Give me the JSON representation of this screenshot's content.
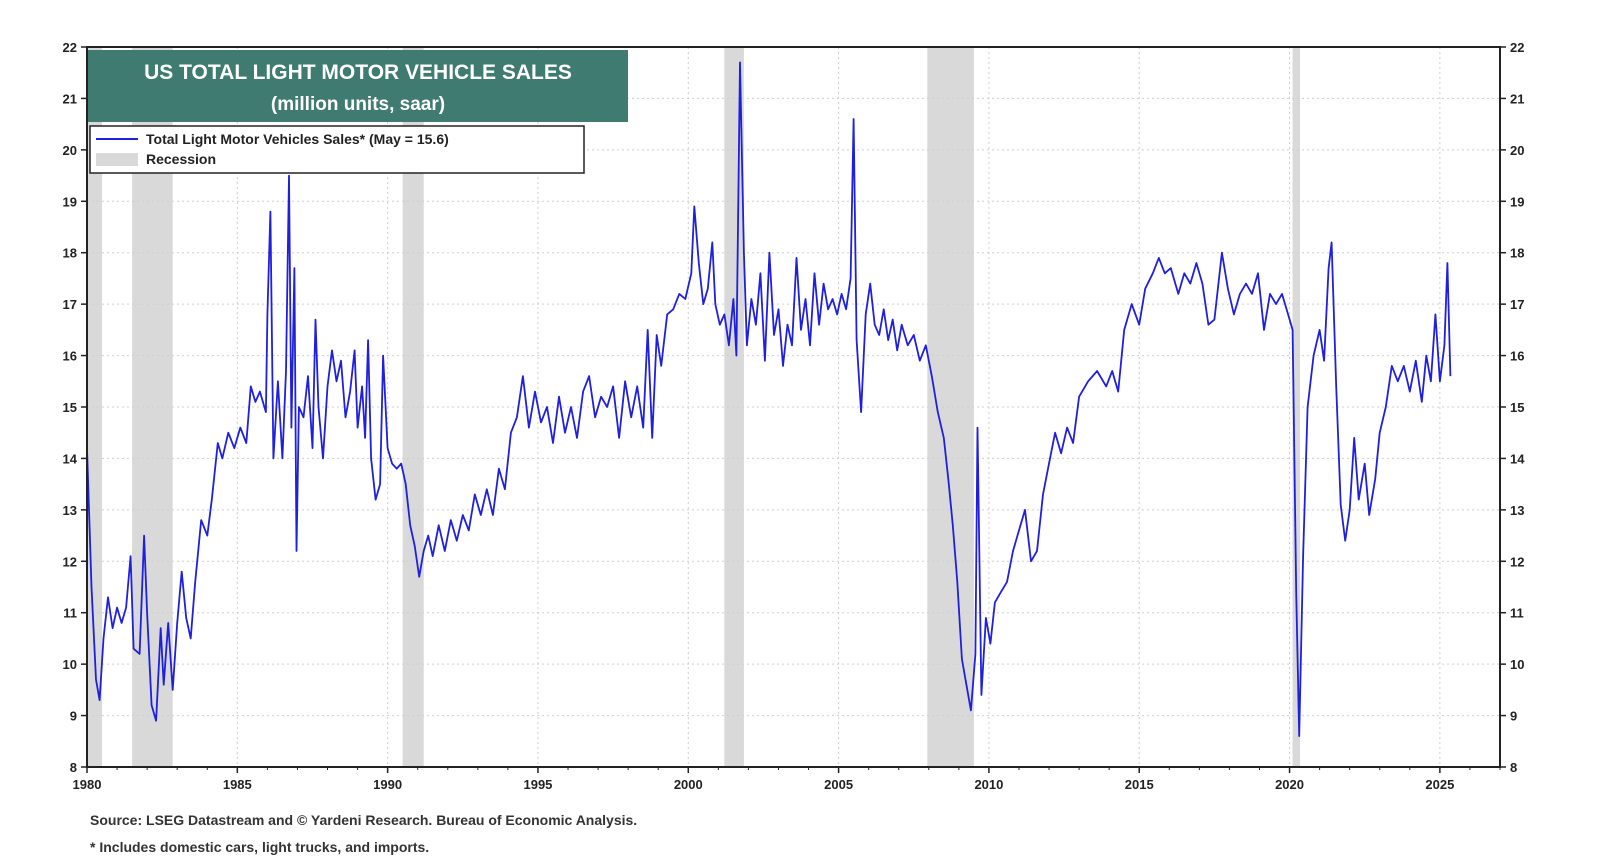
{
  "chart_data": {
    "type": "line",
    "title": "US TOTAL LIGHT MOTOR VEHICLE SALES",
    "subtitle": "(million units, saar)",
    "xlabel": "",
    "ylabel": "",
    "xlim": [
      1980,
      2027
    ],
    "ylim": [
      8,
      22
    ],
    "x_ticks": [
      "1980",
      "1985",
      "1990",
      "1995",
      "2000",
      "2005",
      "2010",
      "2015",
      "2020",
      "2025"
    ],
    "y_ticks": [
      "8",
      "9",
      "10",
      "11",
      "12",
      "13",
      "14",
      "15",
      "16",
      "17",
      "18",
      "19",
      "20",
      "21",
      "22"
    ],
    "grid": true,
    "legend_position": "top-left",
    "legend": [
      {
        "label": "Total Light Motor Vehicles Sales* (May = 15.6)",
        "kind": "line",
        "color": "#1f1fe0"
      },
      {
        "label": "Recession",
        "kind": "band",
        "color": "#d9d9d9"
      }
    ],
    "recessions": [
      [
        1980.0,
        1980.5
      ],
      [
        1981.5,
        1982.85
      ],
      [
        1990.5,
        1991.2
      ],
      [
        2001.2,
        2001.85
      ],
      [
        2007.95,
        2009.5
      ],
      [
        2020.1,
        2020.35
      ]
    ],
    "series": [
      {
        "name": "Total Light Motor Vehicles Sales* (May = 15.6)",
        "color": "#1f1fe0",
        "points": [
          [
            1980.0,
            14.2
          ],
          [
            1980.15,
            11.5
          ],
          [
            1980.3,
            9.7
          ],
          [
            1980.42,
            9.3
          ],
          [
            1980.55,
            10.5
          ],
          [
            1980.7,
            11.3
          ],
          [
            1980.85,
            10.7
          ],
          [
            1981.0,
            11.1
          ],
          [
            1981.15,
            10.8
          ],
          [
            1981.3,
            11.1
          ],
          [
            1981.45,
            12.1
          ],
          [
            1981.55,
            10.3
          ],
          [
            1981.75,
            10.2
          ],
          [
            1981.9,
            12.5
          ],
          [
            1982.0,
            11.0
          ],
          [
            1982.15,
            9.2
          ],
          [
            1982.3,
            8.9
          ],
          [
            1982.45,
            10.7
          ],
          [
            1982.55,
            9.6
          ],
          [
            1982.7,
            10.8
          ],
          [
            1982.85,
            9.5
          ],
          [
            1983.0,
            10.8
          ],
          [
            1983.15,
            11.8
          ],
          [
            1983.3,
            10.9
          ],
          [
            1983.45,
            10.5
          ],
          [
            1983.6,
            11.6
          ],
          [
            1983.8,
            12.8
          ],
          [
            1984.0,
            12.5
          ],
          [
            1984.15,
            13.2
          ],
          [
            1984.35,
            14.3
          ],
          [
            1984.5,
            14.0
          ],
          [
            1984.7,
            14.5
          ],
          [
            1984.9,
            14.2
          ],
          [
            1985.1,
            14.6
          ],
          [
            1985.3,
            14.3
          ],
          [
            1985.45,
            15.4
          ],
          [
            1985.6,
            15.1
          ],
          [
            1985.75,
            15.3
          ],
          [
            1985.95,
            14.9
          ],
          [
            1986.0,
            16.8
          ],
          [
            1986.1,
            18.8
          ],
          [
            1986.2,
            14.0
          ],
          [
            1986.35,
            15.5
          ],
          [
            1986.5,
            14.0
          ],
          [
            1986.62,
            15.7
          ],
          [
            1986.72,
            19.5
          ],
          [
            1986.8,
            14.6
          ],
          [
            1986.9,
            17.7
          ],
          [
            1986.97,
            12.2
          ],
          [
            1987.05,
            15.0
          ],
          [
            1987.2,
            14.8
          ],
          [
            1987.35,
            15.6
          ],
          [
            1987.5,
            14.2
          ],
          [
            1987.6,
            16.7
          ],
          [
            1987.7,
            15.0
          ],
          [
            1987.85,
            14.0
          ],
          [
            1988.0,
            15.4
          ],
          [
            1988.15,
            16.1
          ],
          [
            1988.3,
            15.5
          ],
          [
            1988.45,
            15.9
          ],
          [
            1988.6,
            14.8
          ],
          [
            1988.75,
            15.3
          ],
          [
            1988.9,
            16.1
          ],
          [
            1989.0,
            14.6
          ],
          [
            1989.15,
            15.4
          ],
          [
            1989.25,
            14.4
          ],
          [
            1989.35,
            16.3
          ],
          [
            1989.45,
            14.0
          ],
          [
            1989.6,
            13.2
          ],
          [
            1989.75,
            13.5
          ],
          [
            1989.85,
            16.0
          ],
          [
            1990.0,
            14.2
          ],
          [
            1990.15,
            13.9
          ],
          [
            1990.3,
            13.8
          ],
          [
            1990.45,
            13.9
          ],
          [
            1990.6,
            13.5
          ],
          [
            1990.75,
            12.7
          ],
          [
            1990.9,
            12.3
          ],
          [
            1991.05,
            11.7
          ],
          [
            1991.2,
            12.2
          ],
          [
            1991.35,
            12.5
          ],
          [
            1991.5,
            12.1
          ],
          [
            1991.7,
            12.7
          ],
          [
            1991.9,
            12.2
          ],
          [
            1992.1,
            12.8
          ],
          [
            1992.3,
            12.4
          ],
          [
            1992.5,
            12.9
          ],
          [
            1992.7,
            12.6
          ],
          [
            1992.9,
            13.3
          ],
          [
            1993.1,
            12.9
          ],
          [
            1993.3,
            13.4
          ],
          [
            1993.5,
            12.9
          ],
          [
            1993.7,
            13.8
          ],
          [
            1993.9,
            13.4
          ],
          [
            1994.1,
            14.5
          ],
          [
            1994.3,
            14.8
          ],
          [
            1994.5,
            15.6
          ],
          [
            1994.7,
            14.6
          ],
          [
            1994.9,
            15.3
          ],
          [
            1995.1,
            14.7
          ],
          [
            1995.3,
            15.0
          ],
          [
            1995.5,
            14.3
          ],
          [
            1995.7,
            15.2
          ],
          [
            1995.9,
            14.5
          ],
          [
            1996.1,
            15.0
          ],
          [
            1996.3,
            14.4
          ],
          [
            1996.5,
            15.3
          ],
          [
            1996.7,
            15.6
          ],
          [
            1996.9,
            14.8
          ],
          [
            1997.1,
            15.2
          ],
          [
            1997.3,
            15.0
          ],
          [
            1997.5,
            15.4
          ],
          [
            1997.7,
            14.4
          ],
          [
            1997.9,
            15.5
          ],
          [
            1998.1,
            14.8
          ],
          [
            1998.3,
            15.4
          ],
          [
            1998.5,
            14.6
          ],
          [
            1998.65,
            16.5
          ],
          [
            1998.8,
            14.4
          ],
          [
            1998.95,
            16.4
          ],
          [
            1999.1,
            15.8
          ],
          [
            1999.3,
            16.8
          ],
          [
            1999.5,
            16.9
          ],
          [
            1999.7,
            17.2
          ],
          [
            1999.9,
            17.1
          ],
          [
            2000.1,
            17.6
          ],
          [
            2000.2,
            18.9
          ],
          [
            2000.35,
            17.8
          ],
          [
            2000.5,
            17.0
          ],
          [
            2000.65,
            17.3
          ],
          [
            2000.8,
            18.2
          ],
          [
            2000.9,
            17.0
          ],
          [
            2001.05,
            16.6
          ],
          [
            2001.2,
            16.8
          ],
          [
            2001.35,
            16.2
          ],
          [
            2001.5,
            17.1
          ],
          [
            2001.6,
            16.0
          ],
          [
            2001.72,
            21.7
          ],
          [
            2001.85,
            18.0
          ],
          [
            2001.95,
            16.2
          ],
          [
            2002.1,
            17.1
          ],
          [
            2002.25,
            16.6
          ],
          [
            2002.4,
            17.6
          ],
          [
            2002.55,
            15.9
          ],
          [
            2002.7,
            18.0
          ],
          [
            2002.85,
            16.4
          ],
          [
            2003.0,
            16.9
          ],
          [
            2003.15,
            15.8
          ],
          [
            2003.3,
            16.6
          ],
          [
            2003.45,
            16.2
          ],
          [
            2003.6,
            17.9
          ],
          [
            2003.75,
            16.5
          ],
          [
            2003.9,
            17.1
          ],
          [
            2004.05,
            16.2
          ],
          [
            2004.2,
            17.6
          ],
          [
            2004.35,
            16.6
          ],
          [
            2004.5,
            17.4
          ],
          [
            2004.65,
            16.9
          ],
          [
            2004.8,
            17.1
          ],
          [
            2004.95,
            16.8
          ],
          [
            2005.1,
            17.2
          ],
          [
            2005.25,
            16.9
          ],
          [
            2005.4,
            17.5
          ],
          [
            2005.5,
            20.6
          ],
          [
            2005.6,
            16.3
          ],
          [
            2005.75,
            14.9
          ],
          [
            2005.9,
            16.8
          ],
          [
            2006.05,
            17.4
          ],
          [
            2006.2,
            16.6
          ],
          [
            2006.35,
            16.4
          ],
          [
            2006.5,
            16.9
          ],
          [
            2006.65,
            16.3
          ],
          [
            2006.8,
            16.7
          ],
          [
            2006.95,
            16.1
          ],
          [
            2007.1,
            16.6
          ],
          [
            2007.3,
            16.2
          ],
          [
            2007.5,
            16.4
          ],
          [
            2007.7,
            15.9
          ],
          [
            2007.9,
            16.2
          ],
          [
            2008.1,
            15.6
          ],
          [
            2008.3,
            14.9
          ],
          [
            2008.5,
            14.4
          ],
          [
            2008.65,
            13.6
          ],
          [
            2008.8,
            12.7
          ],
          [
            2008.95,
            11.6
          ],
          [
            2009.1,
            10.1
          ],
          [
            2009.25,
            9.6
          ],
          [
            2009.4,
            9.1
          ],
          [
            2009.55,
            10.2
          ],
          [
            2009.62,
            14.6
          ],
          [
            2009.75,
            9.4
          ],
          [
            2009.9,
            10.9
          ],
          [
            2010.05,
            10.4
          ],
          [
            2010.2,
            11.2
          ],
          [
            2010.4,
            11.4
          ],
          [
            2010.6,
            11.6
          ],
          [
            2010.8,
            12.2
          ],
          [
            2011.0,
            12.6
          ],
          [
            2011.2,
            13.0
          ],
          [
            2011.4,
            12.0
          ],
          [
            2011.6,
            12.2
          ],
          [
            2011.8,
            13.3
          ],
          [
            2012.0,
            13.9
          ],
          [
            2012.2,
            14.5
          ],
          [
            2012.4,
            14.1
          ],
          [
            2012.6,
            14.6
          ],
          [
            2012.8,
            14.3
          ],
          [
            2013.0,
            15.2
          ],
          [
            2013.3,
            15.5
          ],
          [
            2013.6,
            15.7
          ],
          [
            2013.9,
            15.4
          ],
          [
            2014.1,
            15.7
          ],
          [
            2014.3,
            15.3
          ],
          [
            2014.5,
            16.5
          ],
          [
            2014.75,
            17.0
          ],
          [
            2015.0,
            16.6
          ],
          [
            2015.2,
            17.3
          ],
          [
            2015.45,
            17.6
          ],
          [
            2015.65,
            17.9
          ],
          [
            2015.85,
            17.6
          ],
          [
            2016.05,
            17.7
          ],
          [
            2016.3,
            17.2
          ],
          [
            2016.5,
            17.6
          ],
          [
            2016.7,
            17.4
          ],
          [
            2016.9,
            17.8
          ],
          [
            2017.1,
            17.4
          ],
          [
            2017.3,
            16.6
          ],
          [
            2017.5,
            16.7
          ],
          [
            2017.75,
            18.0
          ],
          [
            2017.95,
            17.3
          ],
          [
            2018.15,
            16.8
          ],
          [
            2018.35,
            17.2
          ],
          [
            2018.55,
            17.4
          ],
          [
            2018.75,
            17.2
          ],
          [
            2018.95,
            17.6
          ],
          [
            2019.15,
            16.5
          ],
          [
            2019.35,
            17.2
          ],
          [
            2019.55,
            17.0
          ],
          [
            2019.75,
            17.2
          ],
          [
            2019.95,
            16.8
          ],
          [
            2020.1,
            16.5
          ],
          [
            2020.22,
            11.4
          ],
          [
            2020.32,
            8.6
          ],
          [
            2020.45,
            12.1
          ],
          [
            2020.6,
            15.0
          ],
          [
            2020.8,
            16.0
          ],
          [
            2021.0,
            16.5
          ],
          [
            2021.15,
            15.9
          ],
          [
            2021.3,
            17.7
          ],
          [
            2021.4,
            18.2
          ],
          [
            2021.55,
            15.4
          ],
          [
            2021.7,
            13.1
          ],
          [
            2021.85,
            12.4
          ],
          [
            2022.0,
            13.0
          ],
          [
            2022.15,
            14.4
          ],
          [
            2022.3,
            13.2
          ],
          [
            2022.5,
            13.9
          ],
          [
            2022.65,
            12.9
          ],
          [
            2022.85,
            13.6
          ],
          [
            2023.0,
            14.5
          ],
          [
            2023.2,
            15.0
          ],
          [
            2023.4,
            15.8
          ],
          [
            2023.6,
            15.5
          ],
          [
            2023.8,
            15.8
          ],
          [
            2024.0,
            15.3
          ],
          [
            2024.2,
            15.9
          ],
          [
            2024.4,
            15.1
          ],
          [
            2024.55,
            16.0
          ],
          [
            2024.7,
            15.5
          ],
          [
            2024.85,
            16.8
          ],
          [
            2025.0,
            15.5
          ],
          [
            2025.15,
            16.2
          ],
          [
            2025.25,
            17.8
          ],
          [
            2025.35,
            15.6
          ]
        ]
      }
    ]
  },
  "footer": {
    "source": "Source: LSEG Datastream and © Yardeni Research. Bureau of Economic Analysis.",
    "note": "* Includes domestic cars, light trucks, and imports."
  },
  "colors": {
    "title_bg": "#3f7b70",
    "line": "#1f1fe0",
    "recession": "#d9d9d9",
    "grid": "#cfcfcf",
    "frame": "#222222"
  }
}
